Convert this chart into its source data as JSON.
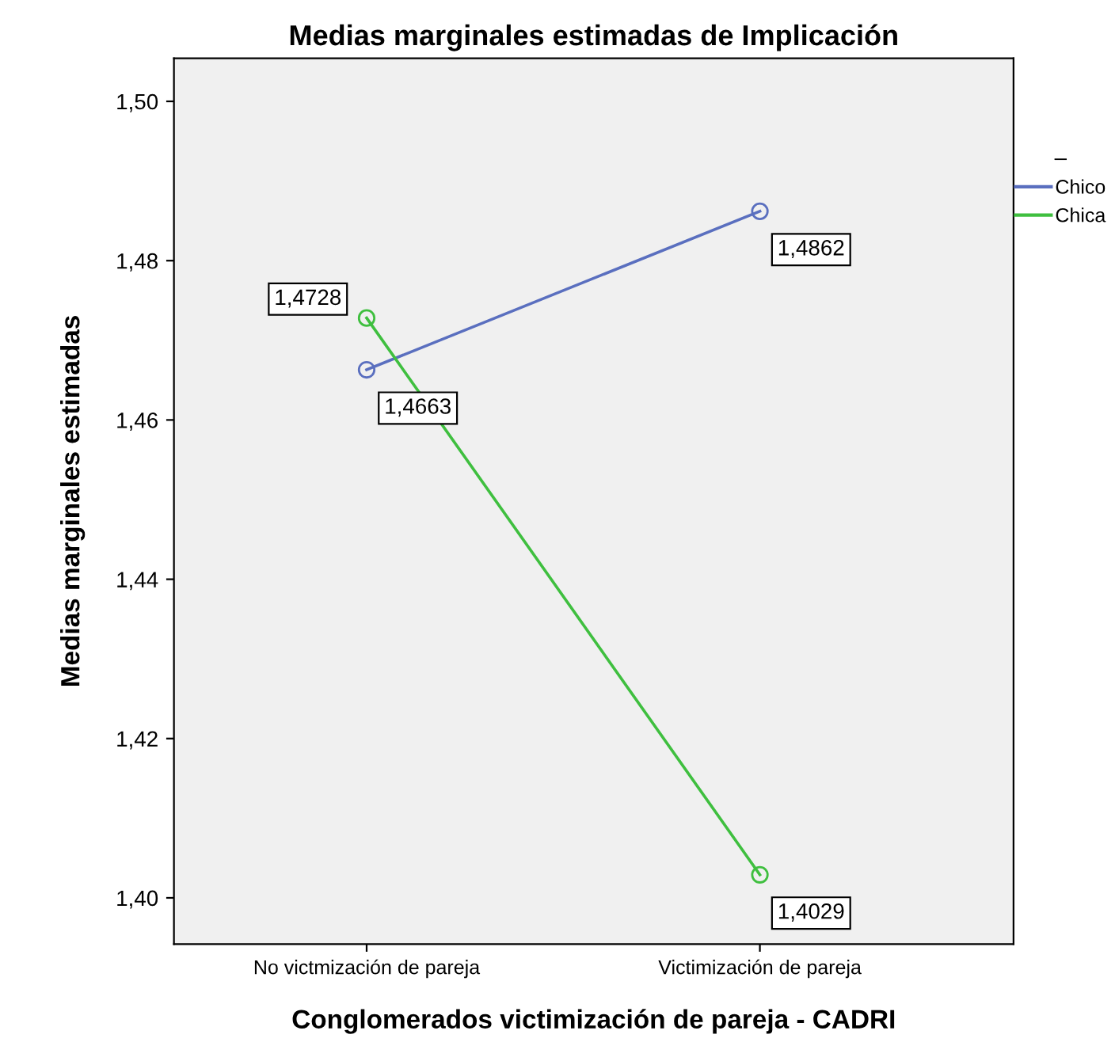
{
  "chart_data": {
    "type": "line",
    "title": "Medias marginales estimadas de Implicación",
    "xlabel": "Conglomerados victimización de pareja - CADRI",
    "ylabel": "Medias marginales estimadas",
    "legend_title": "–",
    "categories": [
      "No victmización de pareja",
      "Victimización de pareja"
    ],
    "series": [
      {
        "name": "Chico",
        "color": "#5a6fbf",
        "values": [
          1.4663,
          1.4862
        ],
        "value_labels": [
          "1,4663",
          "1,4862"
        ]
      },
      {
        "name": "Chica",
        "color": "#3fbf3f",
        "values": [
          1.4728,
          1.4029
        ],
        "value_labels": [
          "1,4728",
          "1,4029"
        ]
      }
    ],
    "ylim": [
      1.3942,
      1.5054
    ],
    "yticks": [
      {
        "value": 1.4,
        "label": "1,40"
      },
      {
        "value": 1.42,
        "label": "1,42"
      },
      {
        "value": 1.44,
        "label": "1,44"
      },
      {
        "value": 1.46,
        "label": "1,46"
      },
      {
        "value": 1.48,
        "label": "1,48"
      },
      {
        "value": 1.5,
        "label": "1,50"
      }
    ],
    "grid": false,
    "legend": "right",
    "marker": "circle",
    "line_style": "solid"
  }
}
